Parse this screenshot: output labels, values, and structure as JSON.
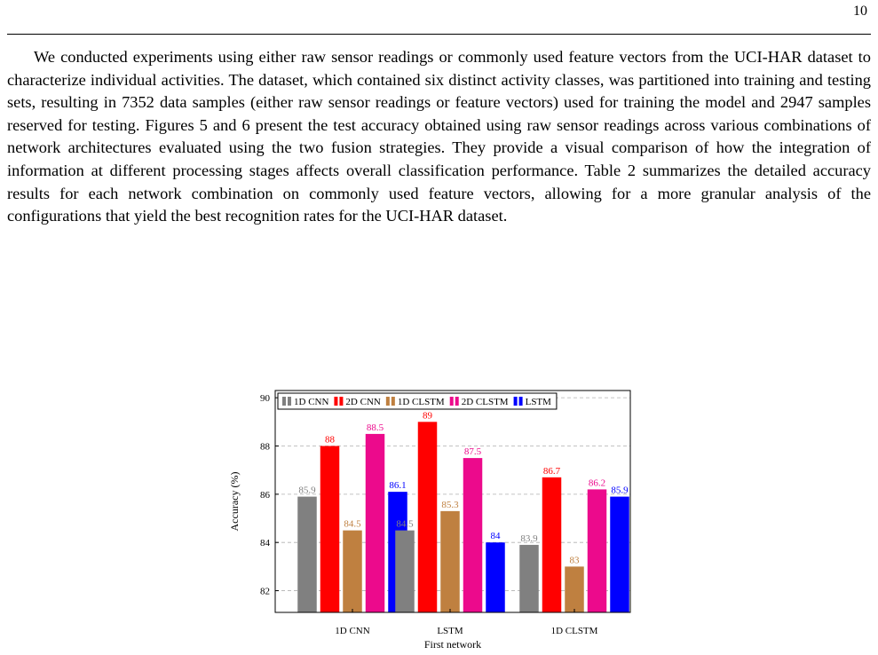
{
  "page": {
    "number": "10"
  },
  "paragraph": "We conducted experiments using either raw sensor readings or commonly used feature vectors from the UCI-HAR dataset to characterize individual activities.  The dataset, which contained six distinct activity classes, was partitioned into training and testing sets, resulting in 7352 data samples (either raw sensor readings or feature vectors) used for training the model and 2947 samples reserved for testing.  Figures 5 and 6 present the test accuracy obtained using raw sensor readings across various combinations of network architectures evaluated using the two fusion strategies.  They provide a visual comparison of how the integration of information at different processing stages affects overall classification performance. Table 2 summarizes the detailed accuracy results for each network combination on commonly used feature vectors, allowing for a more granular analysis of the configurations that yield the best recognition rates for the UCI-HAR dataset.",
  "chart_data": {
    "type": "bar",
    "title": "",
    "xlabel": "First network",
    "ylabel": "Accuracy (%)",
    "categories": [
      "1D CNN",
      "LSTM",
      "1D CLSTM"
    ],
    "ylim": [
      81.1,
      90.3
    ],
    "yticks": [
      82,
      84,
      86,
      88,
      90
    ],
    "grid": "horizontal-dashed",
    "legend": "top-center",
    "series": [
      {
        "name": "1D CNN",
        "color": "#808080",
        "values": [
          85.9,
          84.5,
          83.9
        ]
      },
      {
        "name": "2D CNN",
        "color": "#ff0000",
        "values": [
          88,
          89,
          86.7
        ]
      },
      {
        "name": "1D CLSTM",
        "color": "#bf8040",
        "values": [
          84.5,
          85.3,
          83
        ]
      },
      {
        "name": "2D CLSTM",
        "color": "#ec0a8c",
        "values": [
          88.5,
          87.5,
          86.2
        ]
      },
      {
        "name": "LSTM",
        "color": "#0000ff",
        "values": [
          86.1,
          84,
          85.9
        ]
      }
    ]
  }
}
